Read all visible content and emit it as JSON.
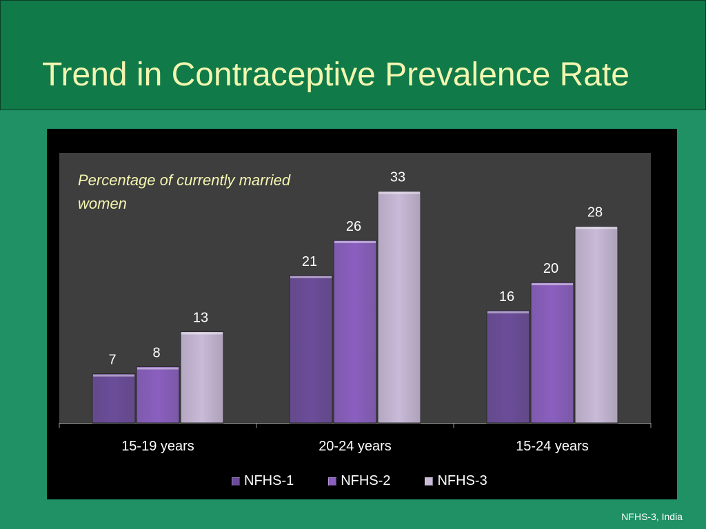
{
  "slide": {
    "title": "Trend in Contraceptive Prevalence Rate",
    "footer": "NFHS-3, India"
  },
  "colors": {
    "background": "#1f9165",
    "title_bar": "#107a49",
    "title_text": "#f2f6b0",
    "plot_bg": "#3e3e3e"
  },
  "chart_data": {
    "type": "bar",
    "subtitle": "Percentage of currently married women",
    "categories": [
      "15-19 years",
      "20-24 years",
      "15-24 years"
    ],
    "series": [
      {
        "name": "NFHS-1",
        "values": [
          7,
          21,
          16
        ],
        "color": "#6b4c9a"
      },
      {
        "name": "NFHS-2",
        "values": [
          8,
          26,
          20
        ],
        "color": "#8a5fc0"
      },
      {
        "name": "NFHS-3",
        "values": [
          13,
          33,
          28
        ],
        "color": "#c9bad8"
      }
    ],
    "ylim": [
      0,
      36
    ],
    "legend_position": "bottom",
    "grid": false
  }
}
